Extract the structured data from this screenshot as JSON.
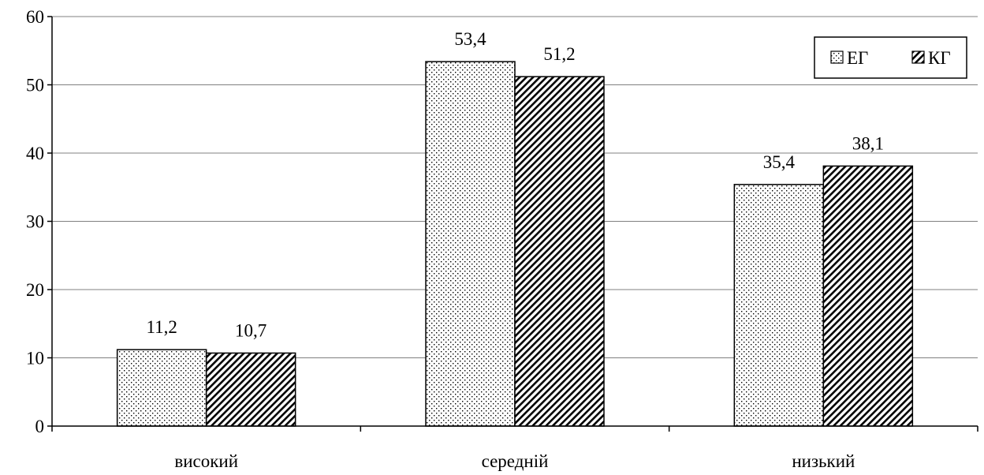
{
  "chart_data": {
    "type": "bar",
    "categories": [
      "високий",
      "середній",
      "низький"
    ],
    "series": [
      {
        "name": "ЕГ",
        "values": [
          11.2,
          53.4,
          35.4
        ],
        "labels": [
          "11,2",
          "53,4",
          "35,4"
        ],
        "pattern": "dots"
      },
      {
        "name": "КГ",
        "values": [
          10.7,
          51.2,
          38.1
        ],
        "labels": [
          "10,7",
          "51,2",
          "38,1"
        ],
        "pattern": "diagonal-hatch"
      }
    ],
    "ylim": [
      0,
      60
    ],
    "yticks": [
      0,
      10,
      20,
      30,
      40,
      50,
      60
    ],
    "ytick_labels": [
      "0",
      "10",
      "20",
      "30",
      "40",
      "50",
      "60"
    ],
    "grid": true,
    "legend_position": "top-right",
    "colors": {
      "bar_fill": "#ffffff",
      "bar_stroke": "#000000",
      "grid": "#808080",
      "axis": "#000000"
    }
  }
}
